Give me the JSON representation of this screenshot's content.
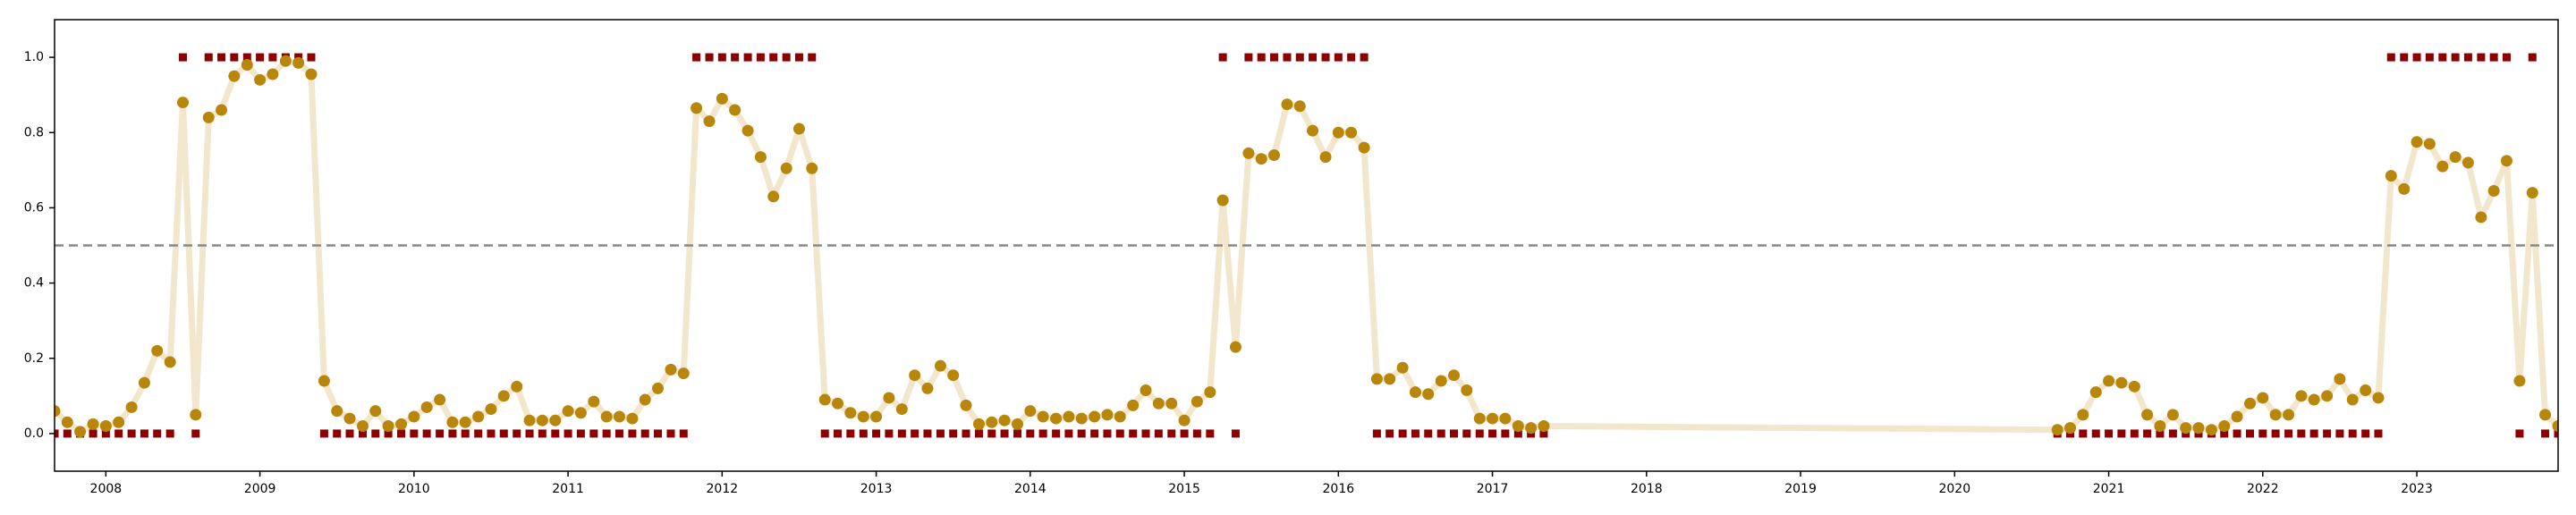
{
  "chart_data": {
    "type": "line",
    "x": [
      2007.667,
      2007.75,
      2007.833,
      2007.917,
      2008,
      2008.083,
      2008.167,
      2008.25,
      2008.333,
      2008.417,
      2008.5,
      2008.583,
      2008.667,
      2008.75,
      2008.833,
      2008.917,
      2009,
      2009.083,
      2009.167,
      2009.25,
      2009.333,
      2009.417,
      2009.5,
      2009.583,
      2009.667,
      2009.75,
      2009.833,
      2009.917,
      2010,
      2010.083,
      2010.167,
      2010.25,
      2010.333,
      2010.417,
      2010.5,
      2010.583,
      2010.667,
      2010.75,
      2010.833,
      2010.917,
      2011,
      2011.083,
      2011.167,
      2011.25,
      2011.333,
      2011.417,
      2011.5,
      2011.583,
      2011.667,
      2011.75,
      2011.833,
      2011.917,
      2012,
      2012.083,
      2012.167,
      2012.25,
      2012.333,
      2012.417,
      2012.5,
      2012.583,
      2012.667,
      2012.75,
      2012.833,
      2012.917,
      2013,
      2013.083,
      2013.167,
      2013.25,
      2013.333,
      2013.417,
      2013.5,
      2013.583,
      2013.667,
      2013.75,
      2013.833,
      2013.917,
      2014,
      2014.083,
      2014.167,
      2014.25,
      2014.333,
      2014.417,
      2014.5,
      2014.583,
      2014.667,
      2014.75,
      2014.833,
      2014.917,
      2015,
      2015.083,
      2015.167,
      2015.25,
      2015.333,
      2015.417,
      2015.5,
      2015.583,
      2015.667,
      2015.75,
      2015.833,
      2015.917,
      2016,
      2016.083,
      2016.167,
      2016.25,
      2016.333,
      2016.417,
      2016.5,
      2016.583,
      2016.667,
      2016.75,
      2016.833,
      2016.917,
      2017,
      2017.083,
      2017.167,
      2017.25,
      2017.333,
      2020.667,
      2020.75,
      2020.833,
      2020.917,
      2021,
      2021.083,
      2021.167,
      2021.25,
      2021.333,
      2021.417,
      2021.5,
      2021.583,
      2021.667,
      2021.75,
      2021.833,
      2021.917,
      2022,
      2022.083,
      2022.167,
      2022.25,
      2022.333,
      2022.417,
      2022.5,
      2022.583,
      2022.667,
      2022.75,
      2022.833,
      2022.917,
      2023,
      2023.083,
      2023.167,
      2023.25,
      2023.333,
      2023.417,
      2023.5,
      2023.583,
      2023.667,
      2023.75,
      2023.833,
      2023.917
    ],
    "series": [
      {
        "color": "#b8860b",
        "line_color": "#f2e6cc",
        "marker": "circle",
        "values": [
          0.06,
          0.03,
          0.005,
          0.025,
          0.02,
          0.03,
          0.07,
          0.135,
          0.22,
          0.19,
          0.88,
          0.05,
          0.84,
          0.86,
          0.95,
          0.98,
          0.94,
          0.955,
          0.99,
          0.985,
          0.955,
          0.14,
          0.06,
          0.04,
          0.02,
          0.06,
          0.02,
          0.025,
          0.045,
          0.07,
          0.09,
          0.03,
          0.03,
          0.045,
          0.065,
          0.1,
          0.125,
          0.035,
          0.035,
          0.035,
          0.06,
          0.055,
          0.085,
          0.045,
          0.045,
          0.04,
          0.09,
          0.12,
          0.17,
          0.16,
          0.865,
          0.83,
          0.89,
          0.86,
          0.805,
          0.735,
          0.63,
          0.705,
          0.81,
          0.705,
          0.09,
          0.08,
          0.055,
          0.045,
          0.045,
          0.095,
          0.065,
          0.155,
          0.12,
          0.18,
          0.155,
          0.075,
          0.025,
          0.03,
          0.035,
          0.025,
          0.06,
          0.045,
          0.04,
          0.045,
          0.04,
          0.045,
          0.05,
          0.045,
          0.075,
          0.115,
          0.08,
          0.08,
          0.035,
          0.085,
          0.11,
          0.62,
          0.23,
          0.745,
          0.73,
          0.74,
          0.875,
          0.87,
          0.805,
          0.735,
          0.8,
          0.8,
          0.76,
          0.145,
          0.145,
          0.175,
          0.11,
          0.105,
          0.14,
          0.155,
          0.115,
          0.04,
          0.04,
          0.04,
          0.02,
          0.015,
          0.02,
          0.01,
          0.015,
          0.05,
          0.11,
          0.14,
          0.135,
          0.125,
          0.05,
          0.02,
          0.05,
          0.015,
          0.015,
          0.01,
          0.02,
          0.045,
          0.08,
          0.095,
          0.05,
          0.05,
          0.1,
          0.09,
          0.1,
          0.145,
          0.09,
          0.115,
          0.095,
          0.685,
          0.65,
          0.775,
          0.77,
          0.71,
          0.735,
          0.72,
          0.575,
          0.645,
          0.725,
          0.14,
          0.64,
          0.05,
          0.02
        ]
      },
      {
        "color": "#8b0000",
        "marker": "square",
        "values": [
          0,
          0,
          0,
          0,
          0,
          0,
          0,
          0,
          0,
          0,
          1,
          0,
          1,
          1,
          1,
          1,
          1,
          1,
          1,
          1,
          1,
          0,
          0,
          0,
          0,
          0,
          0,
          0,
          0,
          0,
          0,
          0,
          0,
          0,
          0,
          0,
          0,
          0,
          0,
          0,
          0,
          0,
          0,
          0,
          0,
          0,
          0,
          0,
          0,
          0,
          1,
          1,
          1,
          1,
          1,
          1,
          1,
          1,
          1,
          1,
          0,
          0,
          0,
          0,
          0,
          0,
          0,
          0,
          0,
          0,
          0,
          0,
          0,
          0,
          0,
          0,
          0,
          0,
          0,
          0,
          0,
          0,
          0,
          0,
          0,
          0,
          0,
          0,
          0,
          0,
          0,
          1,
          0,
          1,
          1,
          1,
          1,
          1,
          1,
          1,
          1,
          1,
          1,
          0,
          0,
          0,
          0,
          0,
          0,
          0,
          0,
          0,
          0,
          0,
          0,
          0,
          0,
          0,
          0,
          0,
          0,
          0,
          0,
          0,
          0,
          0,
          0,
          0,
          0,
          0,
          0,
          0,
          0,
          0,
          0,
          0,
          0,
          0,
          0,
          0,
          0,
          0,
          0,
          1,
          1,
          1,
          1,
          1,
          1,
          1,
          1,
          1,
          1,
          0,
          1,
          0,
          0
        ]
      }
    ],
    "hline": 0.5,
    "hline_color": "#888888",
    "xlim": [
      2007.667,
      2023.917
    ],
    "xticks": [
      2008,
      2009,
      2010,
      2011,
      2012,
      2013,
      2014,
      2015,
      2016,
      2017,
      2018,
      2019,
      2020,
      2021,
      2022,
      2023
    ],
    "ylim": [
      -0.1,
      1.1
    ],
    "yticks": [
      {
        "value": 0,
        "label": "0.0"
      },
      0.2,
      0.4,
      0.6,
      0.8,
      {
        "value": 1,
        "label": "1.0"
      }
    ],
    "grid": false
  }
}
